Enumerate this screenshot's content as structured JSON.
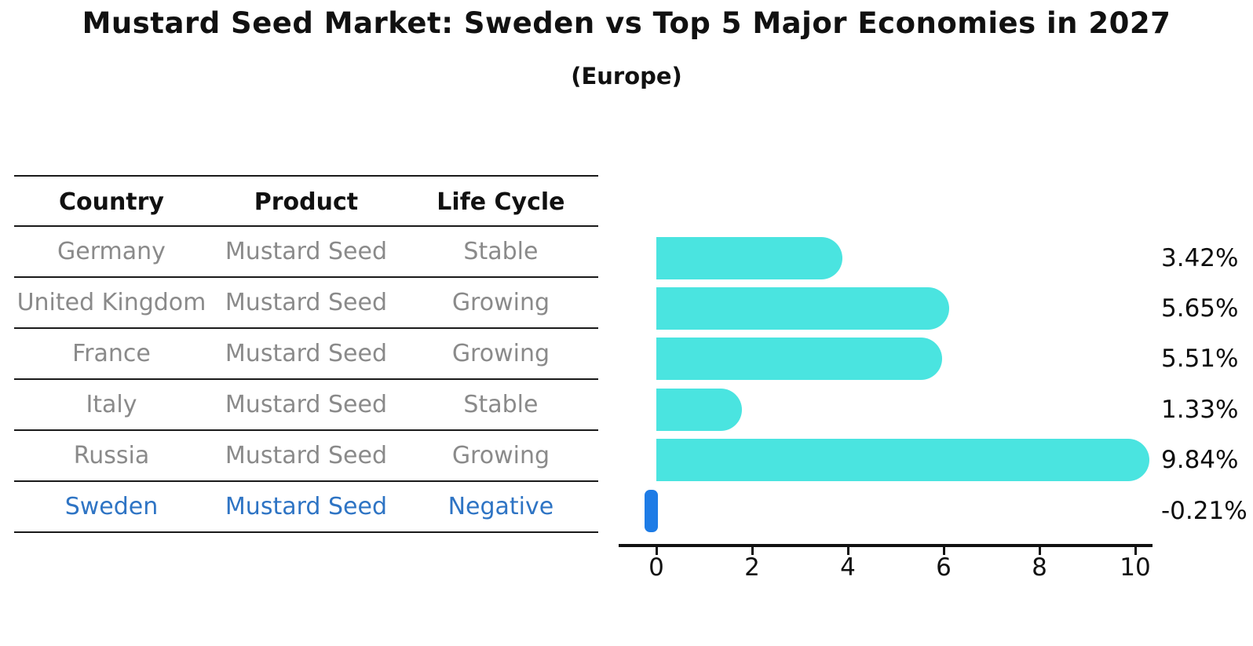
{
  "title": "Mustard Seed Market: Sweden vs Top 5 Major Economies in 2027",
  "subtitle": "(Europe)",
  "table": {
    "headers": [
      "Country",
      "Product",
      "Life Cycle"
    ],
    "rows": [
      {
        "country": "Germany",
        "product": "Mustard Seed",
        "life_cycle": "Stable",
        "highlighted": false
      },
      {
        "country": "United Kingdom",
        "product": "Mustard Seed",
        "life_cycle": "Growing",
        "highlighted": false
      },
      {
        "country": "France",
        "product": "Mustard Seed",
        "life_cycle": "Growing",
        "highlighted": false
      },
      {
        "country": "Italy",
        "product": "Mustard Seed",
        "life_cycle": "Stable",
        "highlighted": false
      },
      {
        "country": "Russia",
        "product": "Mustard Seed",
        "life_cycle": "Growing",
        "highlighted": false
      },
      {
        "country": "Sweden",
        "product": "Mustard Seed",
        "life_cycle": "Negative",
        "highlighted": true
      }
    ]
  },
  "chart_data": {
    "type": "bar",
    "orientation": "horizontal",
    "title": "Mustard Seed Market: Sweden vs Top 5 Major Economies in 2027 (Europe)",
    "categories": [
      "Germany",
      "United Kingdom",
      "France",
      "Italy",
      "Russia",
      "Sweden"
    ],
    "values": [
      3.42,
      5.65,
      5.51,
      1.33,
      9.84,
      -0.21
    ],
    "value_labels": [
      "3.42%",
      "5.65%",
      "5.51%",
      "1.33%",
      "9.84%",
      "-0.21%"
    ],
    "x_ticks": [
      "0",
      "2",
      "4",
      "6",
      "8",
      "10"
    ],
    "xlim": [
      -0.8,
      10.4
    ],
    "grid": false,
    "legend": null,
    "bar_color": "#4ae4e0",
    "highlight_bar_color": "#1e7ce6",
    "highlight_index": 5
  },
  "colors": {
    "background": "#ffffff",
    "title_text": "#111111",
    "table_header_text": "#111111",
    "table_body_text": "#8a8a8a",
    "highlight_text": "#2e74c4",
    "value_label_text": "#0d0d0d",
    "axis": "#111111",
    "table_line": "#1a1a1a"
  }
}
